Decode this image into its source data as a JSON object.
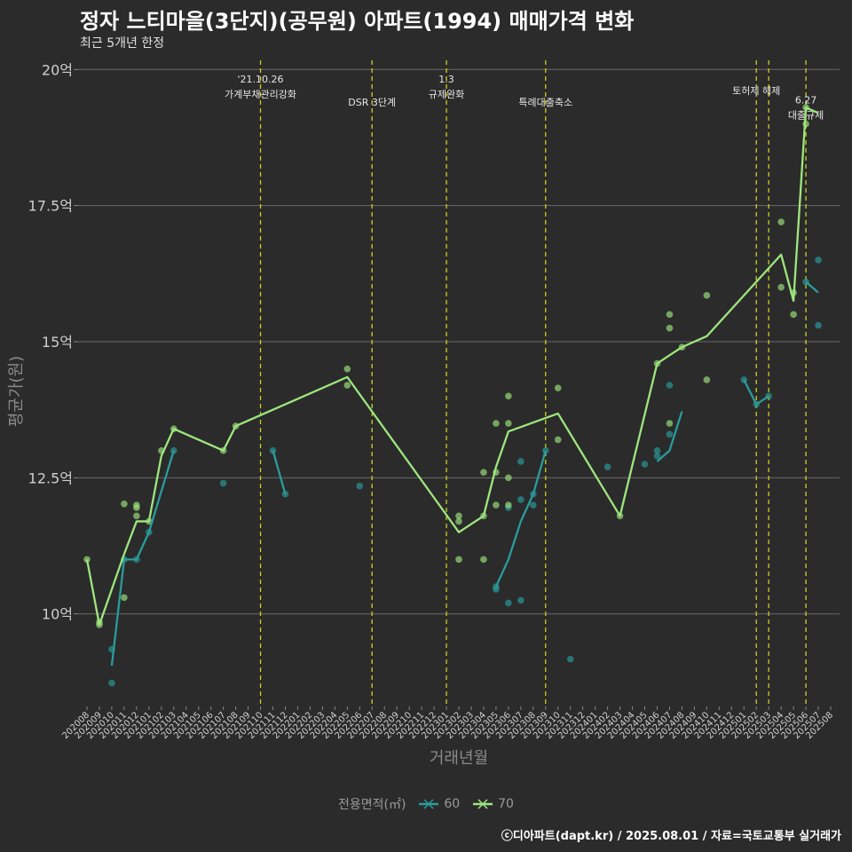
{
  "title": "정자 느티마을(3단지)(공무원) 아파트(1994) 매매가격 변화",
  "subtitle": "최근 5개년 한정",
  "caption": "ⓒ디아파트(dapt.kr) / 2025.08.01 / 자료=국토교통부 실거래가",
  "legend": {
    "title": "전용면적(㎡)",
    "items": [
      "60",
      "70"
    ]
  },
  "colors": {
    "s60": "#2a9c9c",
    "s70": "#9ee67e",
    "vline": "#c8d21e",
    "grid": "#6a6a6a",
    "background": "#2b2b2b"
  },
  "chart_data": {
    "type": "line",
    "xlabel": "거래년월",
    "ylabel": "평균가(원)",
    "ylim": [
      8.3,
      20.2
    ],
    "yticks": [
      10,
      12.5,
      15,
      17.5,
      20
    ],
    "ytick_labels": [
      "10억",
      "12.5억",
      "15억",
      "17.5억",
      "20억"
    ],
    "x_start": "202008",
    "xticks": [
      "202008",
      "202009",
      "202010",
      "202011",
      "202012",
      "202101",
      "202102",
      "202103",
      "202104",
      "202105",
      "202106",
      "202107",
      "202108",
      "202109",
      "202110",
      "202111",
      "202112",
      "202201",
      "202202",
      "202203",
      "202204",
      "202205",
      "202206",
      "202207",
      "202208",
      "202209",
      "202210",
      "202211",
      "202212",
      "202301",
      "202302",
      "202303",
      "202304",
      "202305",
      "202306",
      "202307",
      "202308",
      "202309",
      "202310",
      "202311",
      "202312",
      "202401",
      "202402",
      "202403",
      "202404",
      "202405",
      "202406",
      "202407",
      "202408",
      "202409",
      "202410",
      "202411",
      "202412",
      "202501",
      "202502",
      "202503",
      "202504",
      "202505",
      "202506",
      "202507",
      "202508"
    ],
    "series": [
      {
        "name": "60",
        "line": [
          [
            "202010",
            9.05
          ],
          [
            "202011",
            11.0
          ],
          [
            "202012",
            11.0
          ],
          [
            "202101",
            11.5
          ],
          [
            "202103",
            13.0
          ],
          null,
          [
            "202111",
            13.0
          ],
          [
            "202112",
            12.2
          ],
          null,
          [
            "202305",
            10.5
          ],
          [
            "202306",
            11.0
          ],
          [
            "202307",
            11.7
          ],
          [
            "202308",
            12.2
          ],
          [
            "202309",
            13.0
          ],
          null,
          [
            "202406",
            12.8
          ],
          [
            "202407",
            13.0
          ],
          [
            "202408",
            13.72
          ],
          null,
          [
            "202501",
            14.3
          ],
          [
            "202502",
            13.85
          ],
          [
            "202503",
            14.0
          ],
          null,
          [
            "202506",
            16.1
          ],
          [
            "202507",
            15.9
          ]
        ],
        "points": [
          [
            "202010",
            9.35
          ],
          [
            "202010",
            8.73
          ],
          [
            "202011",
            11.0
          ],
          [
            "202012",
            11.0
          ],
          [
            "202101",
            11.5
          ],
          [
            "202103",
            13.0
          ],
          [
            "202107",
            12.4
          ],
          [
            "202111",
            13.0
          ],
          [
            "202112",
            12.2
          ],
          [
            "202206",
            12.35
          ],
          [
            "202305",
            10.45
          ],
          [
            "202305",
            10.5
          ],
          [
            "202306",
            10.2
          ],
          [
            "202306",
            11.95
          ],
          [
            "202307",
            10.25
          ],
          [
            "202307",
            12.1
          ],
          [
            "202307",
            12.8
          ],
          [
            "202308",
            12.2
          ],
          [
            "202308",
            12.0
          ],
          [
            "202309",
            13.0
          ],
          [
            "202311",
            9.17
          ],
          [
            "202402",
            12.7
          ],
          [
            "202405",
            12.75
          ],
          [
            "202406",
            12.9
          ],
          [
            "202406",
            13.0
          ],
          [
            "202407",
            14.2
          ],
          [
            "202407",
            13.3
          ],
          [
            "202501",
            14.3
          ],
          [
            "202502",
            13.85
          ],
          [
            "202503",
            14.0
          ],
          [
            "202506",
            16.1
          ],
          [
            "202507",
            15.3
          ],
          [
            "202507",
            16.5
          ]
        ]
      },
      {
        "name": "70",
        "line": [
          [
            "202008",
            11.0
          ],
          [
            "202009",
            9.8
          ],
          [
            "202011",
            11.1
          ],
          [
            "202012",
            11.7
          ],
          [
            "202101",
            11.7
          ],
          [
            "202102",
            12.9
          ],
          [
            "202103",
            13.4
          ],
          [
            "202107",
            13.0
          ],
          [
            "202108",
            13.45
          ],
          [
            "202205",
            14.35
          ],
          [
            "202302",
            11.5
          ],
          [
            "202304",
            11.8
          ],
          [
            "202305",
            12.7
          ],
          [
            "202306",
            13.35
          ],
          [
            "202310",
            13.68
          ],
          [
            "202403",
            11.8
          ],
          [
            "202406",
            14.6
          ],
          [
            "202408",
            14.9
          ],
          [
            "202410",
            15.1
          ],
          [
            "202504",
            16.6
          ],
          [
            "202505",
            15.75
          ],
          [
            "202506",
            19.3
          ],
          [
            "202507",
            19.2
          ]
        ],
        "points": [
          [
            "202008",
            11.0
          ],
          [
            "202009",
            9.8
          ],
          [
            "202009",
            9.85
          ],
          [
            "202011",
            12.02
          ],
          [
            "202011",
            10.3
          ],
          [
            "202012",
            12.0
          ],
          [
            "202012",
            11.95
          ],
          [
            "202012",
            11.8
          ],
          [
            "202101",
            11.7
          ],
          [
            "202102",
            13.0
          ],
          [
            "202103",
            13.4
          ],
          [
            "202107",
            13.0
          ],
          [
            "202108",
            13.45
          ],
          [
            "202205",
            14.5
          ],
          [
            "202205",
            14.2
          ],
          [
            "202302",
            11.0
          ],
          [
            "202302",
            11.8
          ],
          [
            "202302",
            11.7
          ],
          [
            "202304",
            11.8
          ],
          [
            "202304",
            11.0
          ],
          [
            "202304",
            12.6
          ],
          [
            "202305",
            12.0
          ],
          [
            "202305",
            12.6
          ],
          [
            "202305",
            13.5
          ],
          [
            "202306",
            14.0
          ],
          [
            "202306",
            13.5
          ],
          [
            "202306",
            12.5
          ],
          [
            "202306",
            12.0
          ],
          [
            "202310",
            14.15
          ],
          [
            "202310",
            13.2
          ],
          [
            "202403",
            11.8
          ],
          [
            "202406",
            14.6
          ],
          [
            "202407",
            15.5
          ],
          [
            "202407",
            15.25
          ],
          [
            "202407",
            13.5
          ],
          [
            "202408",
            14.9
          ],
          [
            "202410",
            15.85
          ],
          [
            "202410",
            14.3
          ],
          [
            "202504",
            17.2
          ],
          [
            "202504",
            16.0
          ],
          [
            "202505",
            15.5
          ],
          [
            "202505",
            15.9
          ],
          [
            "202506",
            19.3
          ],
          [
            "202506",
            19.0
          ]
        ]
      }
    ],
    "events": [
      {
        "x": "202110",
        "lines": [
          "'21.10.26",
          "가계부채관리강화"
        ],
        "row": 0
      },
      {
        "x": "202207",
        "lines": [
          "DSR 3단계"
        ],
        "row": 2
      },
      {
        "x": "202301",
        "lines": [
          "1.3",
          "규제완화"
        ],
        "row": 0
      },
      {
        "x": "202309",
        "lines": [
          "특례대출축소"
        ],
        "row": 2
      },
      {
        "x": "202502",
        "lines": [
          "토허제 해제"
        ],
        "row": 1
      },
      {
        "x": "202503",
        "lines": [],
        "row": 1
      },
      {
        "x": "202506",
        "lines": [
          "6.27",
          "대출규제"
        ],
        "row": 1.8
      }
    ],
    "grid": true,
    "legend_position": "bottom"
  }
}
